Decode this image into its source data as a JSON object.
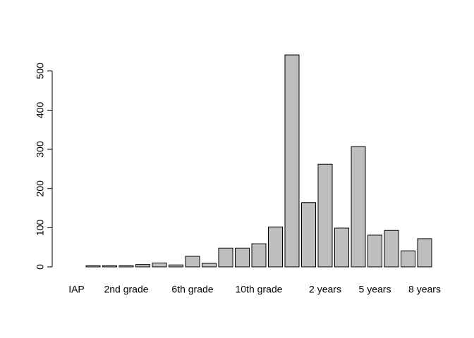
{
  "chart_data": {
    "type": "bar",
    "categories": [
      "IAP",
      null,
      null,
      "2nd grade",
      null,
      null,
      null,
      "6th grade",
      null,
      null,
      null,
      "10th grade",
      null,
      null,
      null,
      "2 years",
      null,
      null,
      "5 years",
      null,
      null,
      "8 years"
    ],
    "values": [
      0,
      3,
      3,
      3,
      6,
      10,
      5,
      27,
      9,
      48,
      48,
      59,
      102,
      541,
      164,
      262,
      99,
      307,
      81,
      93,
      41,
      72
    ],
    "color": "#bebebe",
    "ylim": [
      0,
      541
    ],
    "yticks": [
      0,
      100,
      200,
      300,
      400,
      500
    ]
  }
}
